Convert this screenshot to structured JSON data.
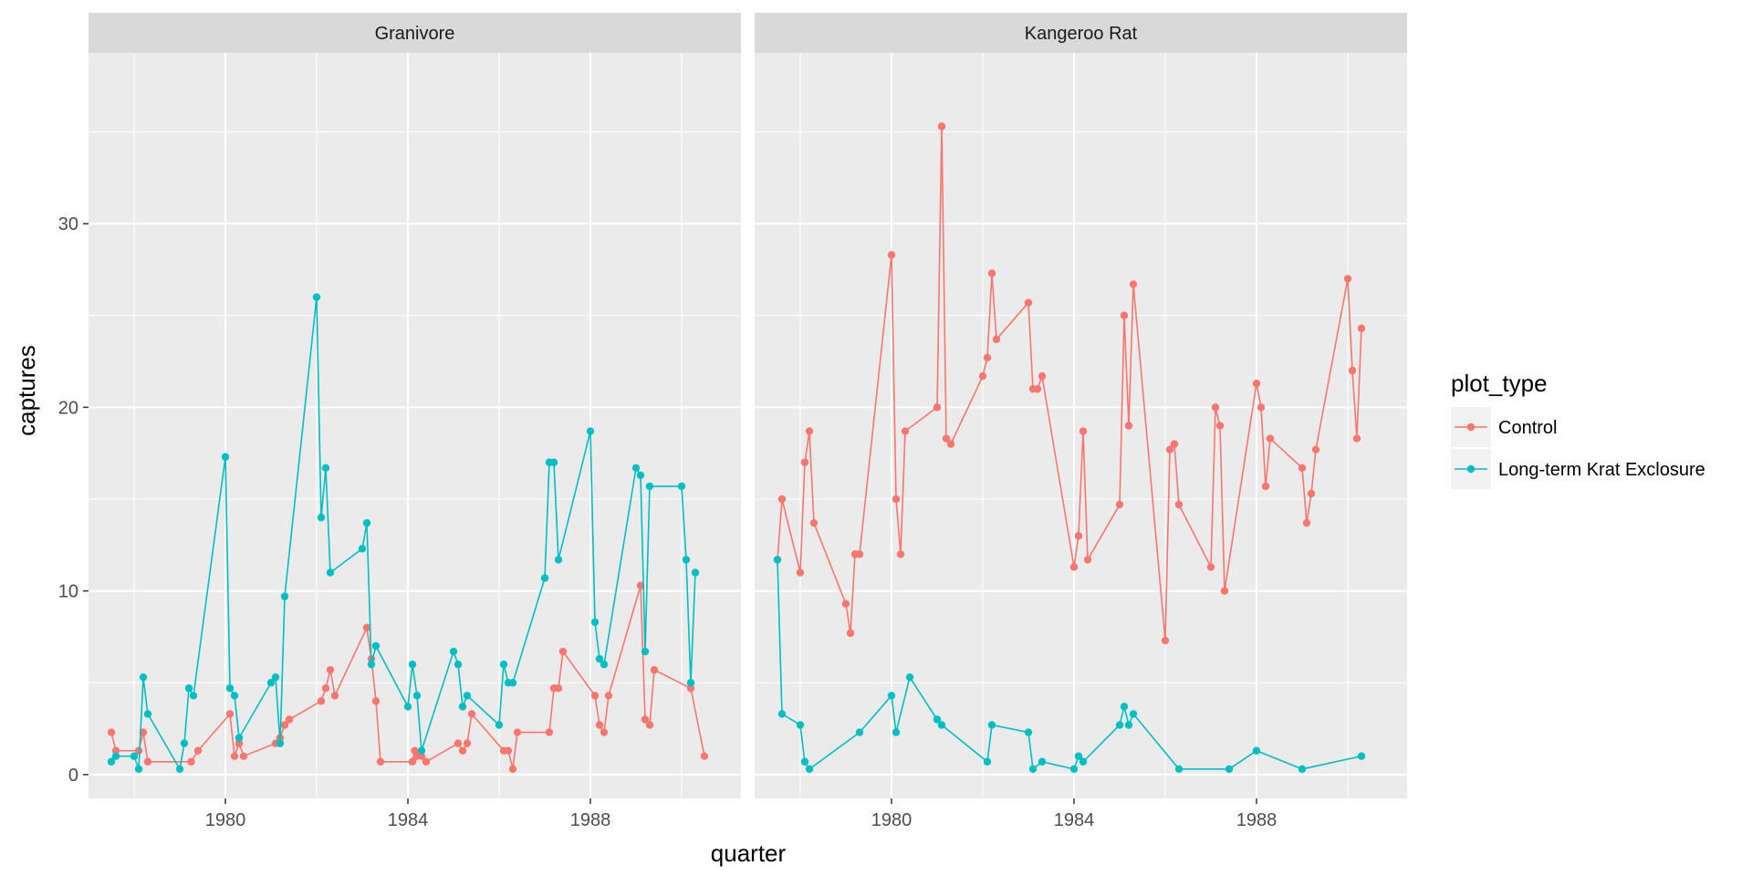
{
  "chart_data": {
    "type": "line",
    "xlabel": "quarter",
    "ylabel": "captures",
    "xlim": [
      1977.0,
      1991.3
    ],
    "ylim": [
      -1.3,
      39.3
    ],
    "x_ticks": [
      1980,
      1984,
      1988
    ],
    "y_ticks": [
      0,
      10,
      20,
      30
    ],
    "x_minor": [
      1978,
      1982,
      1986,
      1990
    ],
    "y_minor": [
      5,
      15,
      25,
      35
    ],
    "grid": true,
    "legend": {
      "title": "plot_type",
      "position": "right",
      "entries": [
        "Control",
        "Long-term Krat Exclosure"
      ]
    },
    "colors": {
      "Control": "#F8766D",
      "Long-term Krat Exclosure": "#00BFC4"
    },
    "panels": [
      {
        "strip": "Granivore",
        "series": [
          {
            "name": "Control",
            "x": [
              1977.5,
              1977.6,
              1978.1,
              1978.2,
              1978.3,
              1979.25,
              1979.4,
              1980.1,
              1980.2,
              1980.3,
              1980.4,
              1981.1,
              1981.2,
              1981.3,
              1981.4,
              1982.1,
              1982.2,
              1982.3,
              1982.4,
              1983.1,
              1983.2,
              1983.3,
              1983.4,
              1984.1,
              1984.15,
              1984.2,
              1984.3,
              1984.4,
              1985.1,
              1985.2,
              1985.3,
              1985.4,
              1986.1,
              1986.2,
              1986.3,
              1986.4,
              1987.1,
              1987.2,
              1987.3,
              1987.4,
              1988.1,
              1988.2,
              1988.3,
              1988.4,
              1989.1,
              1989.2,
              1989.3,
              1989.4,
              1990.2,
              1990.5
            ],
            "y": [
              2.3,
              1.3,
              1.3,
              2.3,
              0.7,
              0.7,
              1.3,
              3.3,
              1.0,
              1.7,
              1.0,
              1.7,
              2.0,
              2.7,
              3.0,
              4.0,
              4.7,
              5.7,
              4.3,
              8.0,
              6.3,
              4.0,
              0.7,
              0.7,
              1.3,
              1.0,
              1.0,
              0.7,
              1.7,
              1.3,
              1.7,
              3.3,
              1.3,
              1.3,
              0.3,
              2.3,
              2.3,
              4.7,
              4.7,
              6.7,
              4.3,
              2.7,
              2.3,
              4.3,
              10.3,
              3.0,
              2.7,
              5.7,
              4.7,
              1.0
            ]
          },
          {
            "name": "Long-term Krat Exclosure",
            "x": [
              1977.5,
              1977.6,
              1978.0,
              1978.1,
              1978.2,
              1978.3,
              1979.0,
              1979.1,
              1979.2,
              1979.3,
              1980.0,
              1980.1,
              1980.2,
              1980.3,
              1981.0,
              1981.1,
              1981.2,
              1981.3,
              1982.0,
              1982.1,
              1982.2,
              1982.3,
              1983.0,
              1983.1,
              1983.2,
              1983.3,
              1984.0,
              1984.1,
              1984.2,
              1984.3,
              1985.0,
              1985.1,
              1985.2,
              1985.3,
              1986.0,
              1986.1,
              1986.2,
              1986.3,
              1987.0,
              1987.1,
              1987.2,
              1987.3,
              1988.0,
              1988.1,
              1988.2,
              1988.3,
              1989.0,
              1989.1,
              1989.2,
              1989.3,
              1990.0,
              1990.1,
              1990.2,
              1990.3
            ],
            "y": [
              0.7,
              1.0,
              1.0,
              0.3,
              5.3,
              3.3,
              0.3,
              1.7,
              4.7,
              4.3,
              17.3,
              4.7,
              4.3,
              2.0,
              5.0,
              5.3,
              1.7,
              9.7,
              26.0,
              14.0,
              16.7,
              11.0,
              12.3,
              13.7,
              6.0,
              7.0,
              3.7,
              6.0,
              4.3,
              1.3,
              6.7,
              6.0,
              3.7,
              4.3,
              2.7,
              6.0,
              5.0,
              5.0,
              10.7,
              17.0,
              17.0,
              11.7,
              18.7,
              8.3,
              6.3,
              6.0,
              16.7,
              16.3,
              6.7,
              15.7,
              15.7,
              11.7,
              5.0,
              11.0
            ]
          }
        ]
      },
      {
        "strip": "Kangeroo Rat",
        "series": [
          {
            "name": "Control",
            "x": [
              1977.5,
              1977.6,
              1978.0,
              1978.1,
              1978.2,
              1978.3,
              1979.0,
              1979.1,
              1979.2,
              1979.3,
              1980.0,
              1980.1,
              1980.2,
              1980.3,
              1981.0,
              1981.1,
              1981.2,
              1981.3,
              1982.0,
              1982.1,
              1982.2,
              1982.3,
              1983.0,
              1983.1,
              1983.2,
              1983.3,
              1984.0,
              1984.1,
              1984.2,
              1984.3,
              1985.0,
              1985.1,
              1985.2,
              1985.3,
              1986.0,
              1986.1,
              1986.2,
              1986.3,
              1987.0,
              1987.1,
              1987.2,
              1987.3,
              1988.0,
              1988.1,
              1988.2,
              1988.3,
              1989.0,
              1989.1,
              1989.2,
              1989.3,
              1990.0,
              1990.1,
              1990.2,
              1990.3
            ],
            "y": [
              11.7,
              15.0,
              11.0,
              17.0,
              18.7,
              13.7,
              9.3,
              7.7,
              12.0,
              12.0,
              28.3,
              15.0,
              12.0,
              18.7,
              20.0,
              35.3,
              18.3,
              18.0,
              21.7,
              22.7,
              27.3,
              23.7,
              25.7,
              21.0,
              21.0,
              21.7,
              11.3,
              13.0,
              18.7,
              11.7,
              14.7,
              25.0,
              19.0,
              26.7,
              7.3,
              17.7,
              18.0,
              14.7,
              11.3,
              20.0,
              19.0,
              10.0,
              21.3,
              20.0,
              15.7,
              18.3,
              16.7,
              13.7,
              15.3,
              17.7,
              27.0,
              22.0,
              18.3,
              24.3
            ]
          },
          {
            "name": "Long-term Krat Exclosure",
            "x": [
              1977.5,
              1977.6,
              1978.0,
              1978.1,
              1978.2,
              1979.3,
              1980.0,
              1980.1,
              1980.4,
              1981.0,
              1981.1,
              1982.1,
              1982.2,
              1983.0,
              1983.1,
              1983.3,
              1984.0,
              1984.1,
              1984.2,
              1985.0,
              1985.1,
              1985.2,
              1985.3,
              1986.3,
              1987.4,
              1988.0,
              1989.0,
              1990.3
            ],
            "y": [
              11.7,
              3.3,
              2.7,
              0.7,
              0.3,
              2.3,
              4.3,
              2.3,
              5.3,
              3.0,
              2.7,
              0.7,
              2.7,
              2.3,
              0.3,
              0.7,
              0.3,
              1.0,
              0.7,
              2.7,
              3.7,
              2.7,
              3.3,
              0.3,
              0.3,
              1.3,
              0.3,
              1.0
            ]
          }
        ]
      }
    ]
  }
}
